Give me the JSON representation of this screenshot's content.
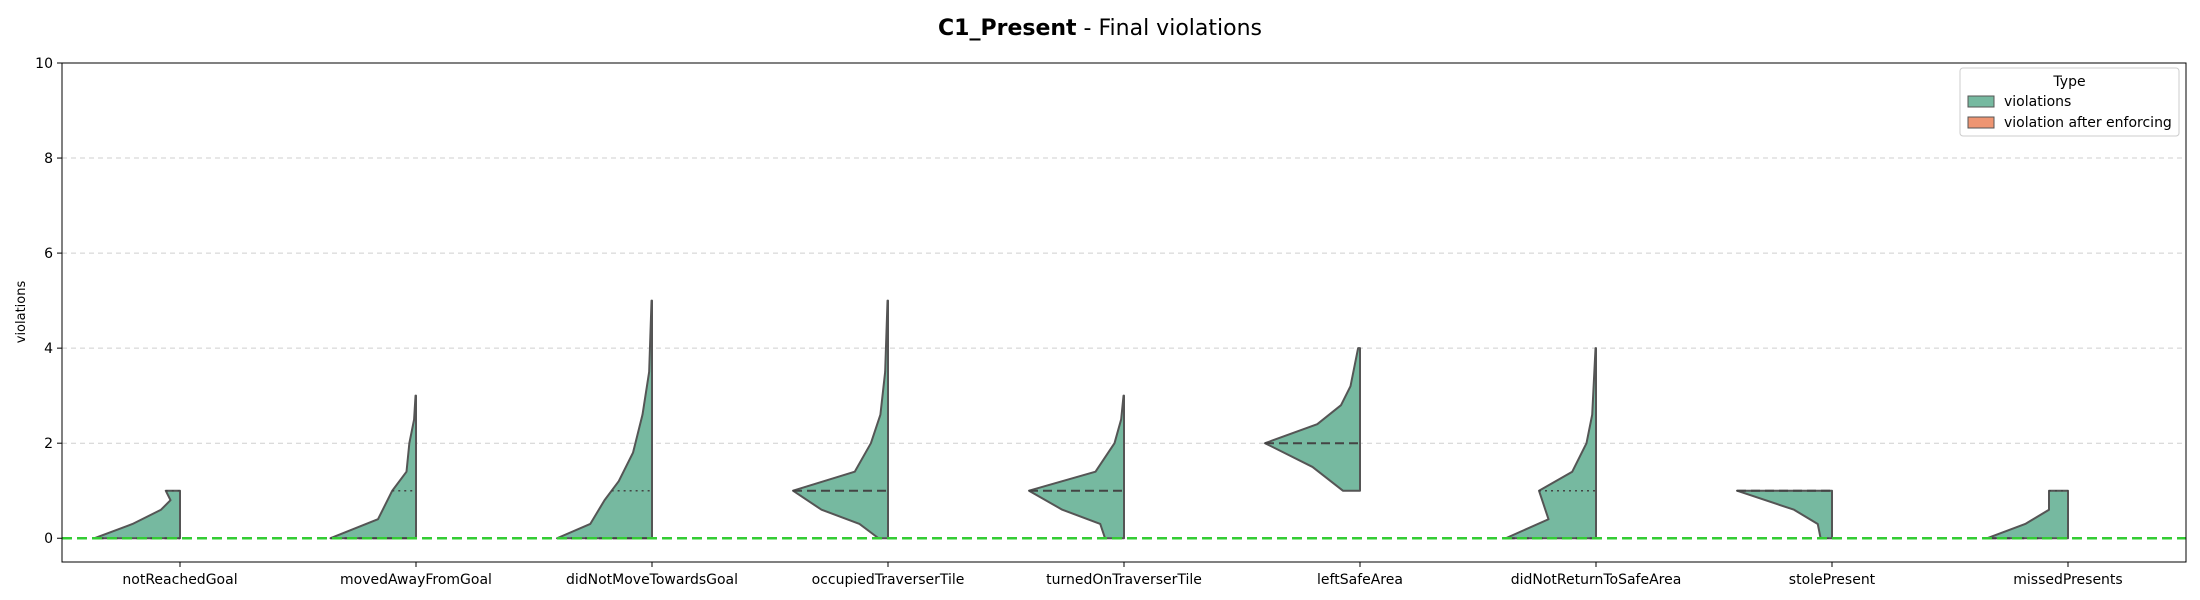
{
  "chart_data": {
    "type": "violin",
    "title_bold": "C1_Present",
    "title_rest": " - Final violations",
    "xlabel": "",
    "ylabel": "violations",
    "ylim": [
      -0.5,
      10
    ],
    "yticks": [
      0,
      2,
      4,
      6,
      8,
      10
    ],
    "grid": true,
    "reference_line": {
      "y": 0,
      "color": "#33cc33",
      "style": "dashed"
    },
    "legend": {
      "title": "Type",
      "position": "top-right",
      "entries": [
        {
          "name": "violations",
          "color": "#76b9a0"
        },
        {
          "name": "violation after enforcing",
          "color": "#ee9572"
        }
      ]
    },
    "categories": [
      "notReachedGoal",
      "movedAwayFromGoal",
      "didNotMoveTowardsGoal",
      "occupiedTraverserTile",
      "turnedOnTraverserTile",
      "leftSafeArea",
      "didNotReturnToSafeArea",
      "stolePresent",
      "missedPresents"
    ],
    "series": [
      {
        "name": "violations",
        "color": "#76b9a0",
        "violins": [
          {
            "range": [
              0,
              1
            ],
            "median": 0,
            "quartiles": [
              0,
              1
            ],
            "profile": [
              [
                0,
                0.9
              ],
              [
                0.3,
                0.5
              ],
              [
                0.6,
                0.2
              ],
              [
                0.8,
                0.1
              ],
              [
                1,
                0.15
              ]
            ]
          },
          {
            "range": [
              0,
              3
            ],
            "median": 0,
            "quartiles": [
              0,
              1
            ],
            "profile": [
              [
                0,
                0.9
              ],
              [
                0.4,
                0.4
              ],
              [
                1,
                0.25
              ],
              [
                1.4,
                0.1
              ],
              [
                2,
                0.07
              ],
              [
                2.5,
                0.02
              ],
              [
                3,
                0.005
              ]
            ]
          },
          {
            "range": [
              0,
              5
            ],
            "median": 0,
            "quartiles": [
              0,
              1
            ],
            "profile": [
              [
                0,
                1.0
              ],
              [
                0.3,
                0.65
              ],
              [
                0.8,
                0.5
              ],
              [
                1.2,
                0.35
              ],
              [
                1.8,
                0.2
              ],
              [
                2.6,
                0.1
              ],
              [
                3.5,
                0.03
              ],
              [
                5,
                0.005
              ]
            ]
          },
          {
            "range": [
              0,
              5
            ],
            "median": 1,
            "quartiles": [
              1,
              1
            ],
            "profile": [
              [
                0,
                0.1
              ],
              [
                0.3,
                0.3
              ],
              [
                0.6,
                0.7
              ],
              [
                1,
                1.0
              ],
              [
                1.4,
                0.35
              ],
              [
                2,
                0.18
              ],
              [
                2.6,
                0.08
              ],
              [
                3.5,
                0.03
              ],
              [
                5,
                0.005
              ]
            ]
          },
          {
            "range": [
              0,
              3
            ],
            "median": 1,
            "quartiles": [
              1,
              1
            ],
            "profile": [
              [
                0,
                0.2
              ],
              [
                0.3,
                0.25
              ],
              [
                0.6,
                0.65
              ],
              [
                1,
                1.0
              ],
              [
                1.4,
                0.3
              ],
              [
                2,
                0.1
              ],
              [
                2.5,
                0.03
              ],
              [
                3,
                0.005
              ]
            ]
          },
          {
            "range": [
              1,
              4
            ],
            "median": 2,
            "quartiles": [
              2,
              2
            ],
            "profile": [
              [
                1,
                0.18
              ],
              [
                1.5,
                0.5
              ],
              [
                2,
                1.0
              ],
              [
                2.4,
                0.45
              ],
              [
                2.8,
                0.2
              ],
              [
                3.2,
                0.1
              ],
              [
                3.6,
                0.06
              ],
              [
                4,
                0.02
              ]
            ]
          },
          {
            "range": [
              0,
              4
            ],
            "median": 0,
            "quartiles": [
              0,
              1
            ],
            "profile": [
              [
                0,
                0.95
              ],
              [
                0.4,
                0.5
              ],
              [
                0.7,
                0.55
              ],
              [
                1,
                0.6
              ],
              [
                1.4,
                0.25
              ],
              [
                2,
                0.1
              ],
              [
                2.6,
                0.04
              ],
              [
                4,
                0.005
              ]
            ]
          },
          {
            "range": [
              0,
              1
            ],
            "median": 1,
            "quartiles": [
              0,
              1
            ],
            "profile": [
              [
                0,
                0.12
              ],
              [
                0.3,
                0.15
              ],
              [
                0.6,
                0.4
              ],
              [
                1,
                1.0
              ]
            ]
          },
          {
            "range": [
              0,
              1
            ],
            "median": 0,
            "quartiles": [
              0,
              1
            ],
            "profile": [
              [
                0,
                0.85
              ],
              [
                0.3,
                0.45
              ],
              [
                0.6,
                0.2
              ],
              [
                1,
                0.2
              ]
            ]
          }
        ]
      },
      {
        "name": "violation after enforcing",
        "color": "#ee9572",
        "violins": []
      }
    ]
  }
}
